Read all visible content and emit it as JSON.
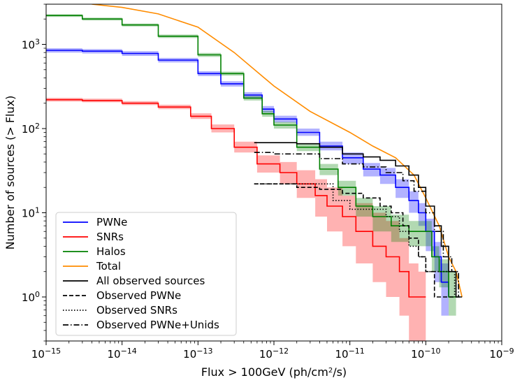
{
  "chart_data": {
    "type": "line",
    "xscale": "log",
    "yscale": "log",
    "xlim": [
      1e-15,
      1e-09
    ],
    "ylim": [
      0.3,
      3000
    ],
    "xlabel": "Flux > 100GeV (ph/cm",
    "xlabel_sup": "2",
    "xlabel_tail": "/s)",
    "ylabel": "Number of sources (> Flux)",
    "x_ticks": [
      {
        "value": 1e-15,
        "base": "10",
        "exp": "−15"
      },
      {
        "value": 1e-14,
        "base": "10",
        "exp": "−14"
      },
      {
        "value": 1e-13,
        "base": "10",
        "exp": "−13"
      },
      {
        "value": 1e-12,
        "base": "10",
        "exp": "−12"
      },
      {
        "value": 1e-11,
        "base": "10",
        "exp": "−11"
      },
      {
        "value": 1e-10,
        "base": "10",
        "exp": "−10"
      },
      {
        "value": 1e-09,
        "base": "10",
        "exp": "−9"
      }
    ],
    "y_ticks": [
      {
        "value": 1,
        "base": "10",
        "exp": "0"
      },
      {
        "value": 10,
        "base": "10",
        "exp": "1"
      },
      {
        "value": 100,
        "base": "10",
        "exp": "2"
      },
      {
        "value": 1000,
        "base": "10",
        "exp": "3"
      }
    ],
    "legend_position": "lower-left",
    "series": [
      {
        "name": "PWNe",
        "color": "#0000ff",
        "style": "solid",
        "band": true,
        "step": true,
        "x": [
          1e-15,
          3e-15,
          1e-14,
          3e-14,
          1e-13,
          2e-13,
          4e-13,
          7e-13,
          1e-12,
          2e-12,
          4e-12,
          8e-12,
          1.5e-11,
          2.5e-11,
          4e-11,
          6e-11,
          8e-11,
          1e-10,
          1.3e-10,
          1.6e-10,
          2e-10
        ],
        "values": [
          850,
          830,
          780,
          650,
          450,
          340,
          250,
          170,
          130,
          90,
          62,
          45,
          33,
          28,
          20,
          14,
          10,
          6,
          3,
          1.5,
          1
        ],
        "band_low": [
          800,
          780,
          730,
          610,
          420,
          315,
          230,
          155,
          118,
          82,
          55,
          38,
          27,
          22,
          15,
          10,
          7,
          3.5,
          1.5,
          0.6,
          0.35
        ],
        "band_high": [
          900,
          880,
          830,
          690,
          480,
          365,
          270,
          185,
          142,
          100,
          70,
          52,
          39,
          34,
          25,
          18,
          13,
          8.5,
          4.5,
          2.5,
          1.5
        ]
      },
      {
        "name": "SNRs",
        "color": "#ff0000",
        "style": "solid",
        "band": true,
        "step": true,
        "x": [
          1e-15,
          3e-15,
          1e-14,
          3e-14,
          8e-14,
          1.5e-13,
          3e-13,
          6e-13,
          1.2e-12,
          2e-12,
          3.5e-12,
          5e-12,
          8e-12,
          1.2e-11,
          2e-11,
          3e-11,
          4.5e-11,
          6e-11,
          8e-11,
          1e-10
        ],
        "values": [
          220,
          215,
          200,
          180,
          140,
          100,
          60,
          38,
          30,
          22,
          16,
          12,
          9,
          6,
          4,
          3,
          2,
          1,
          1,
          1
        ],
        "band_low": [
          210,
          205,
          190,
          170,
          130,
          90,
          52,
          30,
          22,
          15,
          9,
          6,
          4,
          2.5,
          1.5,
          1,
          0.6,
          0.3,
          0.3,
          0.3
        ],
        "band_high": [
          232,
          227,
          212,
          192,
          152,
          112,
          70,
          48,
          40,
          32,
          25,
          20,
          16,
          13,
          10,
          8,
          5,
          2.5,
          2,
          2
        ]
      },
      {
        "name": "Halos",
        "color": "#008000",
        "style": "solid",
        "band": true,
        "step": true,
        "x": [
          1e-15,
          3e-15,
          1e-14,
          3e-14,
          1e-13,
          2e-13,
          4e-13,
          7e-13,
          1e-12,
          2e-12,
          4e-12,
          7e-12,
          1.2e-11,
          2e-11,
          3.5e-11,
          6e-11,
          9e-11,
          1.2e-10,
          1.5e-10,
          2e-10,
          2.5e-10
        ],
        "values": [
          2200,
          2000,
          1700,
          1250,
          750,
          450,
          230,
          150,
          110,
          60,
          33,
          20,
          12,
          9,
          7,
          6,
          6,
          3,
          2,
          1,
          1
        ],
        "band_low": [
          2120,
          1920,
          1630,
          1190,
          710,
          425,
          215,
          138,
          100,
          54,
          28,
          16,
          9,
          6,
          4.5,
          4,
          4,
          2,
          1.3,
          0.6,
          0.6
        ],
        "band_high": [
          2280,
          2080,
          1770,
          1310,
          790,
          475,
          245,
          162,
          120,
          66,
          38,
          24,
          15,
          12,
          9.5,
          8,
          8,
          4,
          2.8,
          2,
          2
        ]
      },
      {
        "name": "Total",
        "color": "#ff8c00",
        "style": "solid",
        "band": false,
        "step": false,
        "x": [
          4e-15,
          1e-14,
          3e-14,
          1e-13,
          3e-13,
          1e-12,
          3e-12,
          1e-11,
          2e-11,
          4e-11,
          7e-11,
          1e-10,
          1.5e-10,
          2e-10,
          2.5e-10,
          3e-10
        ],
        "values": [
          3000,
          2750,
          2300,
          1600,
          800,
          320,
          160,
          90,
          62,
          45,
          28,
          15,
          7,
          3,
          2,
          1
        ]
      },
      {
        "name": "All observed sources",
        "color": "#000000",
        "style": "solid",
        "band": false,
        "step": true,
        "x": [
          5.5e-13,
          1e-12,
          2e-12,
          4e-12,
          8e-12,
          1.5e-11,
          2.5e-11,
          4e-11,
          6e-11,
          8e-11,
          1e-10,
          1.3e-10,
          1.6e-10,
          2e-10,
          2.5e-10,
          3e-10
        ],
        "values": [
          68,
          68,
          66,
          60,
          50,
          46,
          42,
          36,
          28,
          20,
          12,
          7,
          4,
          2,
          1,
          1
        ]
      },
      {
        "name": "Observed PWNe",
        "color": "#000000",
        "style": "dashed",
        "band": false,
        "step": true,
        "x": [
          5.5e-13,
          1e-12,
          2e-12,
          4e-12,
          8e-12,
          1.5e-11,
          2.5e-11,
          3.5e-11,
          5e-11,
          6e-11,
          8e-11,
          1e-10,
          1.3e-10,
          1.8e-10,
          2.3e-10,
          2.8e-10
        ],
        "values": [
          22,
          22,
          20,
          19,
          17,
          15,
          12,
          10,
          7,
          5,
          3,
          2,
          1,
          1,
          1,
          1
        ]
      },
      {
        "name": "Observed SNRs",
        "color": "#000000",
        "style": "dotted",
        "band": false,
        "step": true,
        "x": [
          5.5e-13,
          3e-12,
          6e-12,
          1e-11,
          2e-11,
          3e-11,
          4.5e-11,
          6e-11,
          8e-11,
          1e-10,
          1.5e-10,
          2e-10,
          2.4e-10
        ],
        "values": [
          22,
          22,
          14,
          11,
          11,
          9,
          6,
          4,
          3,
          2,
          2,
          2,
          1
        ]
      },
      {
        "name": "Observed PWNe+Unids",
        "color": "#000000",
        "style": "dashdot",
        "band": false,
        "step": true,
        "x": [
          5.5e-13,
          1e-12,
          2e-12,
          4e-12,
          8e-12,
          1.5e-11,
          3e-11,
          5e-11,
          7e-11,
          1e-10,
          1.3e-10,
          1.7e-10,
          2.2e-10,
          2.7e-10
        ],
        "values": [
          52,
          50,
          50,
          44,
          38,
          35,
          30,
          24,
          18,
          10,
          6,
          3,
          2,
          1
        ]
      }
    ]
  }
}
